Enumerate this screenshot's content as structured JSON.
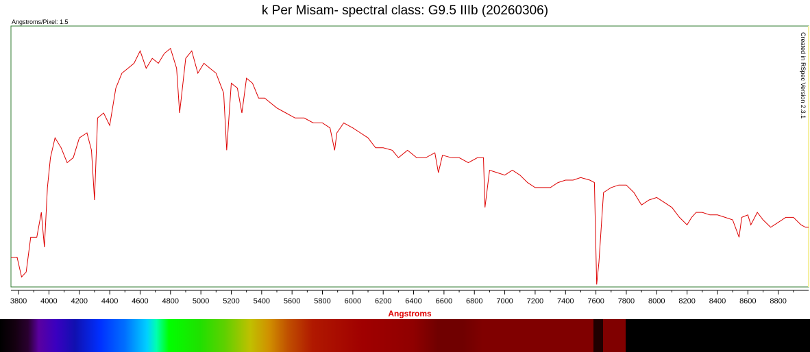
{
  "title": "k Per Misam- spectral class: G9.5 IIIb (20260306)",
  "scale_note": "Angstroms/Pixel: 1.5",
  "credit": "Created in RSpec Version 2.3.1",
  "colors": {
    "line": "#dd0000",
    "frame": "#2d7a2d",
    "axis_label": "#e00000",
    "right_marker": "#f5f0a0"
  },
  "chart_data": {
    "type": "line",
    "title": "k Per Misam- spectral class: G9.5 IIIb (20260306)",
    "xlabel": "Angstroms",
    "ylabel": "",
    "xlim": [
      3750,
      9000
    ],
    "ylim": [
      0,
      1.05
    ],
    "grid": false,
    "xticks": [
      "3800",
      "4000",
      "4200",
      "4400",
      "4600",
      "4800",
      "5000",
      "5200",
      "5400",
      "5600",
      "5800",
      "6000",
      "6200",
      "6400",
      "6600",
      "6800",
      "7000",
      "7200",
      "7400",
      "7600",
      "7800",
      "8000",
      "8200",
      "8400",
      "8600",
      "8800"
    ],
    "series": [
      {
        "name": "",
        "points": [
          [
            3750,
            0.12
          ],
          [
            3790,
            0.12
          ],
          [
            3820,
            0.04
          ],
          [
            3850,
            0.06
          ],
          [
            3880,
            0.2
          ],
          [
            3920,
            0.2
          ],
          [
            3950,
            0.3
          ],
          [
            3970,
            0.16
          ],
          [
            3990,
            0.4
          ],
          [
            4010,
            0.52
          ],
          [
            4040,
            0.6
          ],
          [
            4080,
            0.56
          ],
          [
            4120,
            0.5
          ],
          [
            4160,
            0.52
          ],
          [
            4200,
            0.6
          ],
          [
            4250,
            0.62
          ],
          [
            4280,
            0.55
          ],
          [
            4300,
            0.35
          ],
          [
            4320,
            0.68
          ],
          [
            4360,
            0.7
          ],
          [
            4400,
            0.65
          ],
          [
            4440,
            0.8
          ],
          [
            4480,
            0.86
          ],
          [
            4520,
            0.88
          ],
          [
            4560,
            0.9
          ],
          [
            4600,
            0.95
          ],
          [
            4640,
            0.88
          ],
          [
            4680,
            0.92
          ],
          [
            4720,
            0.9
          ],
          [
            4760,
            0.94
          ],
          [
            4800,
            0.96
          ],
          [
            4840,
            0.88
          ],
          [
            4860,
            0.7
          ],
          [
            4900,
            0.92
          ],
          [
            4940,
            0.95
          ],
          [
            4980,
            0.86
          ],
          [
            5020,
            0.9
          ],
          [
            5060,
            0.88
          ],
          [
            5100,
            0.86
          ],
          [
            5150,
            0.78
          ],
          [
            5170,
            0.55
          ],
          [
            5200,
            0.82
          ],
          [
            5240,
            0.8
          ],
          [
            5270,
            0.7
          ],
          [
            5300,
            0.84
          ],
          [
            5340,
            0.82
          ],
          [
            5380,
            0.76
          ],
          [
            5420,
            0.76
          ],
          [
            5460,
            0.74
          ],
          [
            5500,
            0.72
          ],
          [
            5560,
            0.7
          ],
          [
            5620,
            0.68
          ],
          [
            5680,
            0.68
          ],
          [
            5740,
            0.66
          ],
          [
            5800,
            0.66
          ],
          [
            5850,
            0.64
          ],
          [
            5880,
            0.55
          ],
          [
            5895,
            0.62
          ],
          [
            5940,
            0.66
          ],
          [
            6000,
            0.64
          ],
          [
            6050,
            0.62
          ],
          [
            6100,
            0.6
          ],
          [
            6150,
            0.56
          ],
          [
            6200,
            0.56
          ],
          [
            6260,
            0.55
          ],
          [
            6300,
            0.52
          ],
          [
            6360,
            0.55
          ],
          [
            6420,
            0.52
          ],
          [
            6480,
            0.52
          ],
          [
            6540,
            0.54
          ],
          [
            6563,
            0.46
          ],
          [
            6590,
            0.53
          ],
          [
            6650,
            0.52
          ],
          [
            6700,
            0.52
          ],
          [
            6760,
            0.5
          ],
          [
            6820,
            0.52
          ],
          [
            6860,
            0.52
          ],
          [
            6870,
            0.32
          ],
          [
            6900,
            0.47
          ],
          [
            6950,
            0.46
          ],
          [
            7000,
            0.45
          ],
          [
            7050,
            0.47
          ],
          [
            7100,
            0.45
          ],
          [
            7150,
            0.42
          ],
          [
            7200,
            0.4
          ],
          [
            7250,
            0.4
          ],
          [
            7300,
            0.4
          ],
          [
            7350,
            0.42
          ],
          [
            7400,
            0.43
          ],
          [
            7450,
            0.43
          ],
          [
            7500,
            0.44
          ],
          [
            7560,
            0.43
          ],
          [
            7590,
            0.42
          ],
          [
            7605,
            0.01
          ],
          [
            7620,
            0.1
          ],
          [
            7650,
            0.38
          ],
          [
            7700,
            0.4
          ],
          [
            7750,
            0.41
          ],
          [
            7800,
            0.41
          ],
          [
            7850,
            0.38
          ],
          [
            7900,
            0.33
          ],
          [
            7950,
            0.35
          ],
          [
            8000,
            0.36
          ],
          [
            8050,
            0.34
          ],
          [
            8100,
            0.32
          ],
          [
            8150,
            0.28
          ],
          [
            8200,
            0.25
          ],
          [
            8230,
            0.28
          ],
          [
            8260,
            0.3
          ],
          [
            8300,
            0.3
          ],
          [
            8350,
            0.29
          ],
          [
            8400,
            0.29
          ],
          [
            8450,
            0.28
          ],
          [
            8500,
            0.27
          ],
          [
            8542,
            0.2
          ],
          [
            8560,
            0.28
          ],
          [
            8600,
            0.29
          ],
          [
            8620,
            0.25
          ],
          [
            8662,
            0.3
          ],
          [
            8700,
            0.27
          ],
          [
            8750,
            0.24
          ],
          [
            8800,
            0.26
          ],
          [
            8850,
            0.28
          ],
          [
            8900,
            0.28
          ],
          [
            8950,
            0.25
          ],
          [
            8980,
            0.24
          ],
          [
            9000,
            0.24
          ]
        ]
      }
    ]
  }
}
